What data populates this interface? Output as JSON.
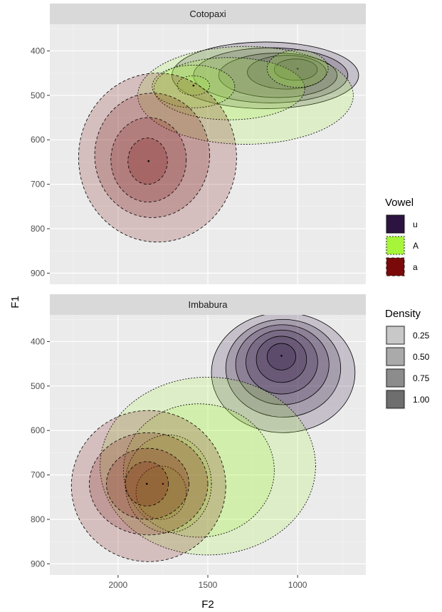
{
  "chart_data": {
    "type": "density-contour",
    "xlabel": "F2",
    "ylabel": "F1",
    "x_reversed": true,
    "y_reversed": true,
    "xlim": [
      2380,
      620
    ],
    "ylim": [
      340,
      925
    ],
    "x_ticks": [
      2000,
      1500,
      1000
    ],
    "y_ticks": [
      400,
      500,
      600,
      700,
      800,
      900
    ],
    "vowel_legend": {
      "title": "Vowel",
      "entries": [
        {
          "label": "u",
          "color": "#2d1440",
          "line": "solid"
        },
        {
          "label": "A",
          "color": "#a6f53a",
          "line": "dotted"
        },
        {
          "label": "a",
          "color": "#7a0a0a",
          "line": "dashed"
        }
      ]
    },
    "density_legend": {
      "title": "Density",
      "entries": [
        {
          "label": "0.25",
          "alpha": 0.25
        },
        {
          "label": "0.50",
          "alpha": 0.5
        },
        {
          "label": "0.75",
          "alpha": 0.75
        },
        {
          "label": "1.00",
          "alpha": 1.0
        }
      ]
    },
    "panels": [
      {
        "strip": "Cotopaxi",
        "series": [
          {
            "vowel": "u",
            "peak": {
              "F2": 1000,
              "F1": 440
            },
            "levels": [
              {
                "F2": 1180,
                "F1": 455,
                "rx": 520,
                "ry": 75
              },
              {
                "F2": 1150,
                "F1": 455,
                "rx": 430,
                "ry": 62
              },
              {
                "F2": 1110,
                "F1": 455,
                "rx": 330,
                "ry": 50
              },
              {
                "F2": 1060,
                "F1": 448,
                "rx": 220,
                "ry": 38
              },
              {
                "F2": 1010,
                "F1": 442,
                "rx": 120,
                "ry": 24
              }
            ]
          },
          {
            "vowel": "A",
            "peak": {
              "F2": 1580,
              "F1": 478
            },
            "levels": [
              {
                "F2": 1290,
                "F1": 500,
                "rx": 600,
                "ry": 110
              },
              {
                "F2": 1380,
                "F1": 485,
                "rx": 420,
                "ry": 70
              },
              {
                "F2": 1580,
                "F1": 480,
                "rx": 230,
                "ry": 48
              },
              {
                "F2": 1000,
                "F1": 440,
                "rx": 170,
                "ry": 42
              },
              {
                "F2": 1580,
                "F1": 478,
                "rx": 90,
                "ry": 22
              }
            ]
          },
          {
            "vowel": "a",
            "peak": {
              "F2": 1830,
              "F1": 648
            },
            "levels": [
              {
                "F2": 1780,
                "F1": 640,
                "rx": 440,
                "ry": 190
              },
              {
                "F2": 1810,
                "F1": 635,
                "rx": 320,
                "ry": 140
              },
              {
                "F2": 1830,
                "F1": 645,
                "rx": 210,
                "ry": 95
              },
              {
                "F2": 1835,
                "F1": 648,
                "rx": 110,
                "ry": 52
              }
            ]
          }
        ]
      },
      {
        "strip": "Imbabura",
        "series": [
          {
            "vowel": "u",
            "peak": {
              "F2": 1090,
              "F1": 432
            },
            "levels": [
              {
                "F2": 1080,
                "F1": 470,
                "rx": 400,
                "ry": 135
              },
              {
                "F2": 1080,
                "F1": 460,
                "rx": 320,
                "ry": 110
              },
              {
                "F2": 1085,
                "F1": 452,
                "rx": 260,
                "ry": 90
              },
              {
                "F2": 1088,
                "F1": 446,
                "rx": 200,
                "ry": 72
              },
              {
                "F2": 1090,
                "F1": 440,
                "rx": 140,
                "ry": 52
              },
              {
                "F2": 1090,
                "F1": 434,
                "rx": 80,
                "ry": 30
              }
            ]
          },
          {
            "vowel": "A",
            "peak": {
              "F2": 1750,
              "F1": 720
            },
            "levels": [
              {
                "F2": 1500,
                "F1": 680,
                "rx": 600,
                "ry": 200
              },
              {
                "F2": 1550,
                "F1": 690,
                "rx": 420,
                "ry": 150
              },
              {
                "F2": 1720,
                "F1": 720,
                "rx": 240,
                "ry": 110
              },
              {
                "F2": 1760,
                "F1": 740,
                "rx": 140,
                "ry": 60
              }
            ]
          },
          {
            "vowel": "a",
            "peak": {
              "F2": 1840,
              "F1": 720
            },
            "levels": [
              {
                "F2": 1830,
                "F1": 725,
                "rx": 430,
                "ry": 170
              },
              {
                "F2": 1830,
                "F1": 720,
                "rx": 330,
                "ry": 115
              },
              {
                "F2": 1835,
                "F1": 720,
                "rx": 230,
                "ry": 80
              },
              {
                "F2": 1840,
                "F1": 720,
                "rx": 120,
                "ry": 50
              }
            ]
          }
        ]
      }
    ]
  }
}
